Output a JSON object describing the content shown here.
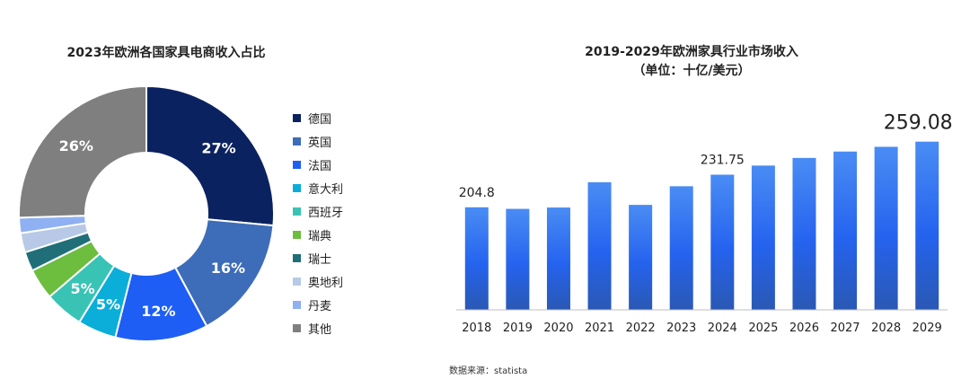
{
  "source": "数据来源：statista",
  "colors": {
    "navy": "#0b2260",
    "steel": "#3d6cb8",
    "blue": "#1e5ef5",
    "cyan": "#0aaed9",
    "teal": "#39c3b4",
    "green": "#6dbd3f",
    "darkteal": "#1f6e78",
    "paleblue": "#b7c9e6",
    "lightblue": "#8fb0f2",
    "gray": "#7f7f7f",
    "bar_top": "#4a8cf4",
    "bar_bottom": "#2a58b3"
  },
  "chart_data": [
    {
      "type": "pie",
      "title": "2023年欧洲各国家具电商收入占比",
      "categories": [
        "德国",
        "英国",
        "法国",
        "意大利",
        "西班牙",
        "瑞典",
        "瑞士",
        "奥地利",
        "丹麦",
        "其他"
      ],
      "values": [
        27,
        16,
        12,
        5,
        5,
        4,
        2.5,
        2.5,
        2,
        26
      ],
      "labels": [
        "27%",
        "16%",
        "12%",
        "5%",
        "5%",
        "",
        "",
        "",
        "",
        "26%"
      ],
      "legend": "right"
    },
    {
      "type": "bar",
      "title": "2019-2029年欧洲家具行业市场收入",
      "subtitle": "（单位：十亿/美元）",
      "categories": [
        "2018",
        "2019",
        "2020",
        "2021",
        "2022",
        "2023",
        "2024",
        "2025",
        "2026",
        "2027",
        "2028",
        "2029"
      ],
      "values": [
        204.8,
        203.5,
        204.6,
        225.5,
        206.8,
        222.2,
        231.75,
        239.3,
        245.6,
        250.9,
        254.8,
        259.08
      ],
      "data_labels": [
        "204.8",
        "",
        "",
        "",
        "",
        "",
        "231.75",
        "",
        "",
        "",
        "",
        "259.08"
      ],
      "ylim": [
        0,
        270
      ]
    }
  ]
}
